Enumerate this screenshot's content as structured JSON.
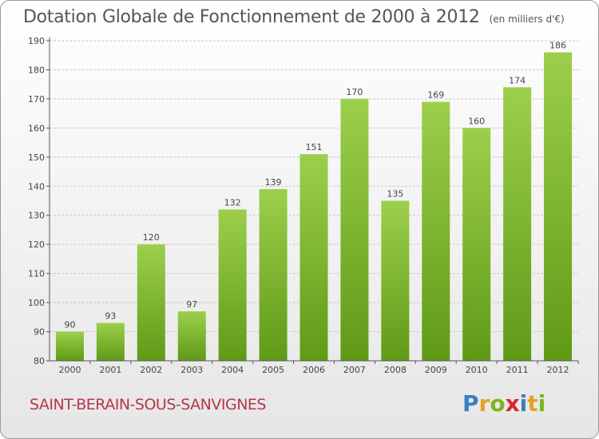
{
  "header": {
    "title": "Dotation Globale de Fonctionnement de 2000 à 2012",
    "unit": "(en milliers d'€)"
  },
  "footer": {
    "commune": "SAINT-BERAIN-SOUS-SANVIGNES",
    "brand": "Proxiti",
    "brand_letters": [
      {
        "char": "P",
        "color": "#3a7fc1"
      },
      {
        "char": "r",
        "color": "#e8a11c"
      },
      {
        "char": "o",
        "color": "#7ab51d"
      },
      {
        "char": "x",
        "color": "#d9262e"
      },
      {
        "char": "i",
        "color": "#3a7fc1"
      },
      {
        "char": "t",
        "color": "#e8a11c"
      },
      {
        "char": "i",
        "color": "#7ab51d"
      }
    ]
  },
  "colors": {
    "bar_top": "#9ccf4c",
    "bar_bottom": "#5f9a16",
    "grid": "#c8c8c8",
    "axis": "#555555",
    "text": "#444444",
    "commune": "#b7364d"
  },
  "chart_data": {
    "type": "bar",
    "title": "Dotation Globale de Fonctionnement de 2000 à 2012",
    "subtitle": "(en milliers d'€)",
    "categories": [
      "2000",
      "2001",
      "2002",
      "2003",
      "2004",
      "2005",
      "2006",
      "2007",
      "2008",
      "2009",
      "2010",
      "2011",
      "2012"
    ],
    "values": [
      90,
      93,
      120,
      97,
      132,
      139,
      151,
      170,
      135,
      169,
      160,
      174,
      186
    ],
    "xlabel": "",
    "ylabel": "",
    "ylim": [
      80,
      190
    ],
    "yticks": [
      80,
      90,
      100,
      110,
      120,
      130,
      140,
      150,
      160,
      170,
      180,
      190
    ],
    "grid": true
  }
}
